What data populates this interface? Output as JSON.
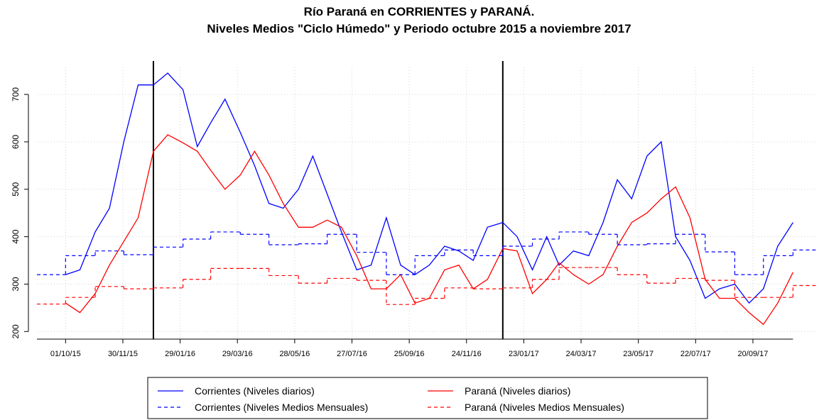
{
  "chart_data": {
    "type": "line",
    "title": "Río Paraná en CORRIENTES y PARANÁ.",
    "subtitle": "Niveles Medios \"Ciclo Húmedo\" y Periodo octubre 2015 a noviembre 2017",
    "xlim": [
      "01/09/15",
      "26/11/17"
    ],
    "ylim": [
      184,
      757
    ],
    "xticks": [
      "01/10/15",
      "30/11/15",
      "29/01/16",
      "29/03/16",
      "28/05/16",
      "27/07/16",
      "25/09/16",
      "24/11/16",
      "23/01/17",
      "24/03/17",
      "23/05/17",
      "22/07/17",
      "20/09/17"
    ],
    "yticks": [
      200,
      300,
      400,
      500,
      600,
      700
    ],
    "grid": true,
    "reference_lines": [
      "01/01/16",
      "01/01/17"
    ],
    "series": [
      {
        "name": "Corrientes (Niveles diarios)",
        "color": "#0000ff",
        "style": "solid",
        "x": [
          "01/10/15",
          "16/10/15",
          "01/11/15",
          "16/11/15",
          "01/12/15",
          "16/12/15",
          "01/01/16",
          "16/01/16",
          "01/02/16",
          "16/02/16",
          "01/03/16",
          "16/03/16",
          "01/04/16",
          "16/04/16",
          "01/05/16",
          "16/05/16",
          "01/06/16",
          "16/06/16",
          "01/07/16",
          "16/07/16",
          "01/08/16",
          "16/08/16",
          "01/09/16",
          "16/09/16",
          "01/10/16",
          "16/10/16",
          "01/11/16",
          "16/11/16",
          "01/12/16",
          "16/12/16",
          "01/01/17",
          "16/01/17",
          "01/02/17",
          "16/02/17",
          "01/03/17",
          "16/03/17",
          "01/04/17",
          "16/04/17",
          "01/05/17",
          "16/05/17",
          "01/06/17",
          "16/06/17",
          "01/07/17",
          "16/07/17",
          "01/08/17",
          "16/08/17",
          "01/09/17",
          "16/09/17",
          "01/10/17",
          "16/10/17",
          "01/11/17"
        ],
        "values": [
          320,
          330,
          410,
          460,
          600,
          720,
          720,
          745,
          710,
          590,
          640,
          690,
          620,
          550,
          470,
          460,
          500,
          570,
          490,
          410,
          330,
          340,
          440,
          340,
          320,
          340,
          380,
          370,
          350,
          420,
          430,
          400,
          330,
          400,
          340,
          370,
          360,
          430,
          520,
          480,
          570,
          600,
          400,
          350,
          270,
          290,
          300,
          260,
          290,
          380,
          430
        ]
      },
      {
        "name": "Paraná (Niveles diarios)",
        "color": "#ff0000",
        "style": "solid",
        "x": [
          "01/10/15",
          "16/10/15",
          "01/11/15",
          "16/11/15",
          "01/12/15",
          "16/12/15",
          "01/01/16",
          "16/01/16",
          "01/02/16",
          "16/02/16",
          "01/03/16",
          "16/03/16",
          "01/04/16",
          "16/04/16",
          "01/05/16",
          "16/05/16",
          "01/06/16",
          "16/06/16",
          "01/07/16",
          "16/07/16",
          "01/08/16",
          "16/08/16",
          "01/09/16",
          "16/09/16",
          "01/10/16",
          "16/10/16",
          "01/11/16",
          "16/11/16",
          "01/12/16",
          "16/12/16",
          "01/01/17",
          "16/01/17",
          "01/02/17",
          "16/02/17",
          "01/03/17",
          "16/03/17",
          "01/04/17",
          "16/04/17",
          "01/05/17",
          "16/05/17",
          "01/06/17",
          "16/06/17",
          "01/07/17",
          "16/07/17",
          "01/08/17",
          "16/08/17",
          "01/09/17",
          "16/09/17",
          "01/10/17",
          "16/10/17",
          "01/11/17"
        ],
        "values": [
          260,
          240,
          280,
          340,
          390,
          440,
          580,
          615,
          598,
          580,
          540,
          500,
          530,
          580,
          530,
          470,
          420,
          420,
          435,
          420,
          360,
          290,
          290,
          320,
          260,
          270,
          330,
          340,
          290,
          310,
          375,
          370,
          280,
          310,
          345,
          320,
          300,
          320,
          380,
          430,
          450,
          480,
          505,
          440,
          310,
          270,
          270,
          240,
          215,
          260,
          325
        ]
      },
      {
        "name": "Corrientes (Niveles Medios Mensuales)",
        "color": "#0000ff",
        "style": "dashed",
        "step": true,
        "x": [
          "01/09/15",
          "01/10/15",
          "01/11/15",
          "01/12/15",
          "01/01/16",
          "01/02/16",
          "01/03/16",
          "01/04/16",
          "01/05/16",
          "01/06/16",
          "01/07/16",
          "01/08/16",
          "01/09/16",
          "01/10/16",
          "01/11/16",
          "01/12/16",
          "01/01/17",
          "01/02/17",
          "01/03/17",
          "01/04/17",
          "01/05/17",
          "01/06/17",
          "01/07/17",
          "01/08/17",
          "01/09/17",
          "01/10/17",
          "01/11/17"
        ],
        "values": [
          320,
          360,
          370,
          362,
          378,
          395,
          410,
          405,
          383,
          385,
          405,
          367,
          320,
          360,
          372,
          360,
          380,
          395,
          410,
          405,
          383,
          385,
          405,
          368,
          320,
          360,
          372
        ]
      },
      {
        "name": "Paraná (Niveles Medios Mensuales)",
        "color": "#ff0000",
        "style": "dashed",
        "step": true,
        "x": [
          "01/09/15",
          "01/10/15",
          "01/11/15",
          "01/12/15",
          "01/01/16",
          "01/02/16",
          "01/03/16",
          "01/04/16",
          "01/05/16",
          "01/06/16",
          "01/07/16",
          "01/08/16",
          "01/09/16",
          "01/10/16",
          "01/11/16",
          "01/12/16",
          "01/01/17",
          "01/02/17",
          "01/03/17",
          "01/04/17",
          "01/05/17",
          "01/06/17",
          "01/07/17",
          "01/08/17",
          "01/09/17",
          "01/10/17",
          "01/11/17"
        ],
        "values": [
          258,
          272,
          295,
          290,
          292,
          310,
          333,
          333,
          318,
          302,
          312,
          308,
          257,
          270,
          292,
          290,
          292,
          310,
          335,
          335,
          320,
          302,
          312,
          308,
          272,
          272,
          297
        ]
      }
    ]
  }
}
